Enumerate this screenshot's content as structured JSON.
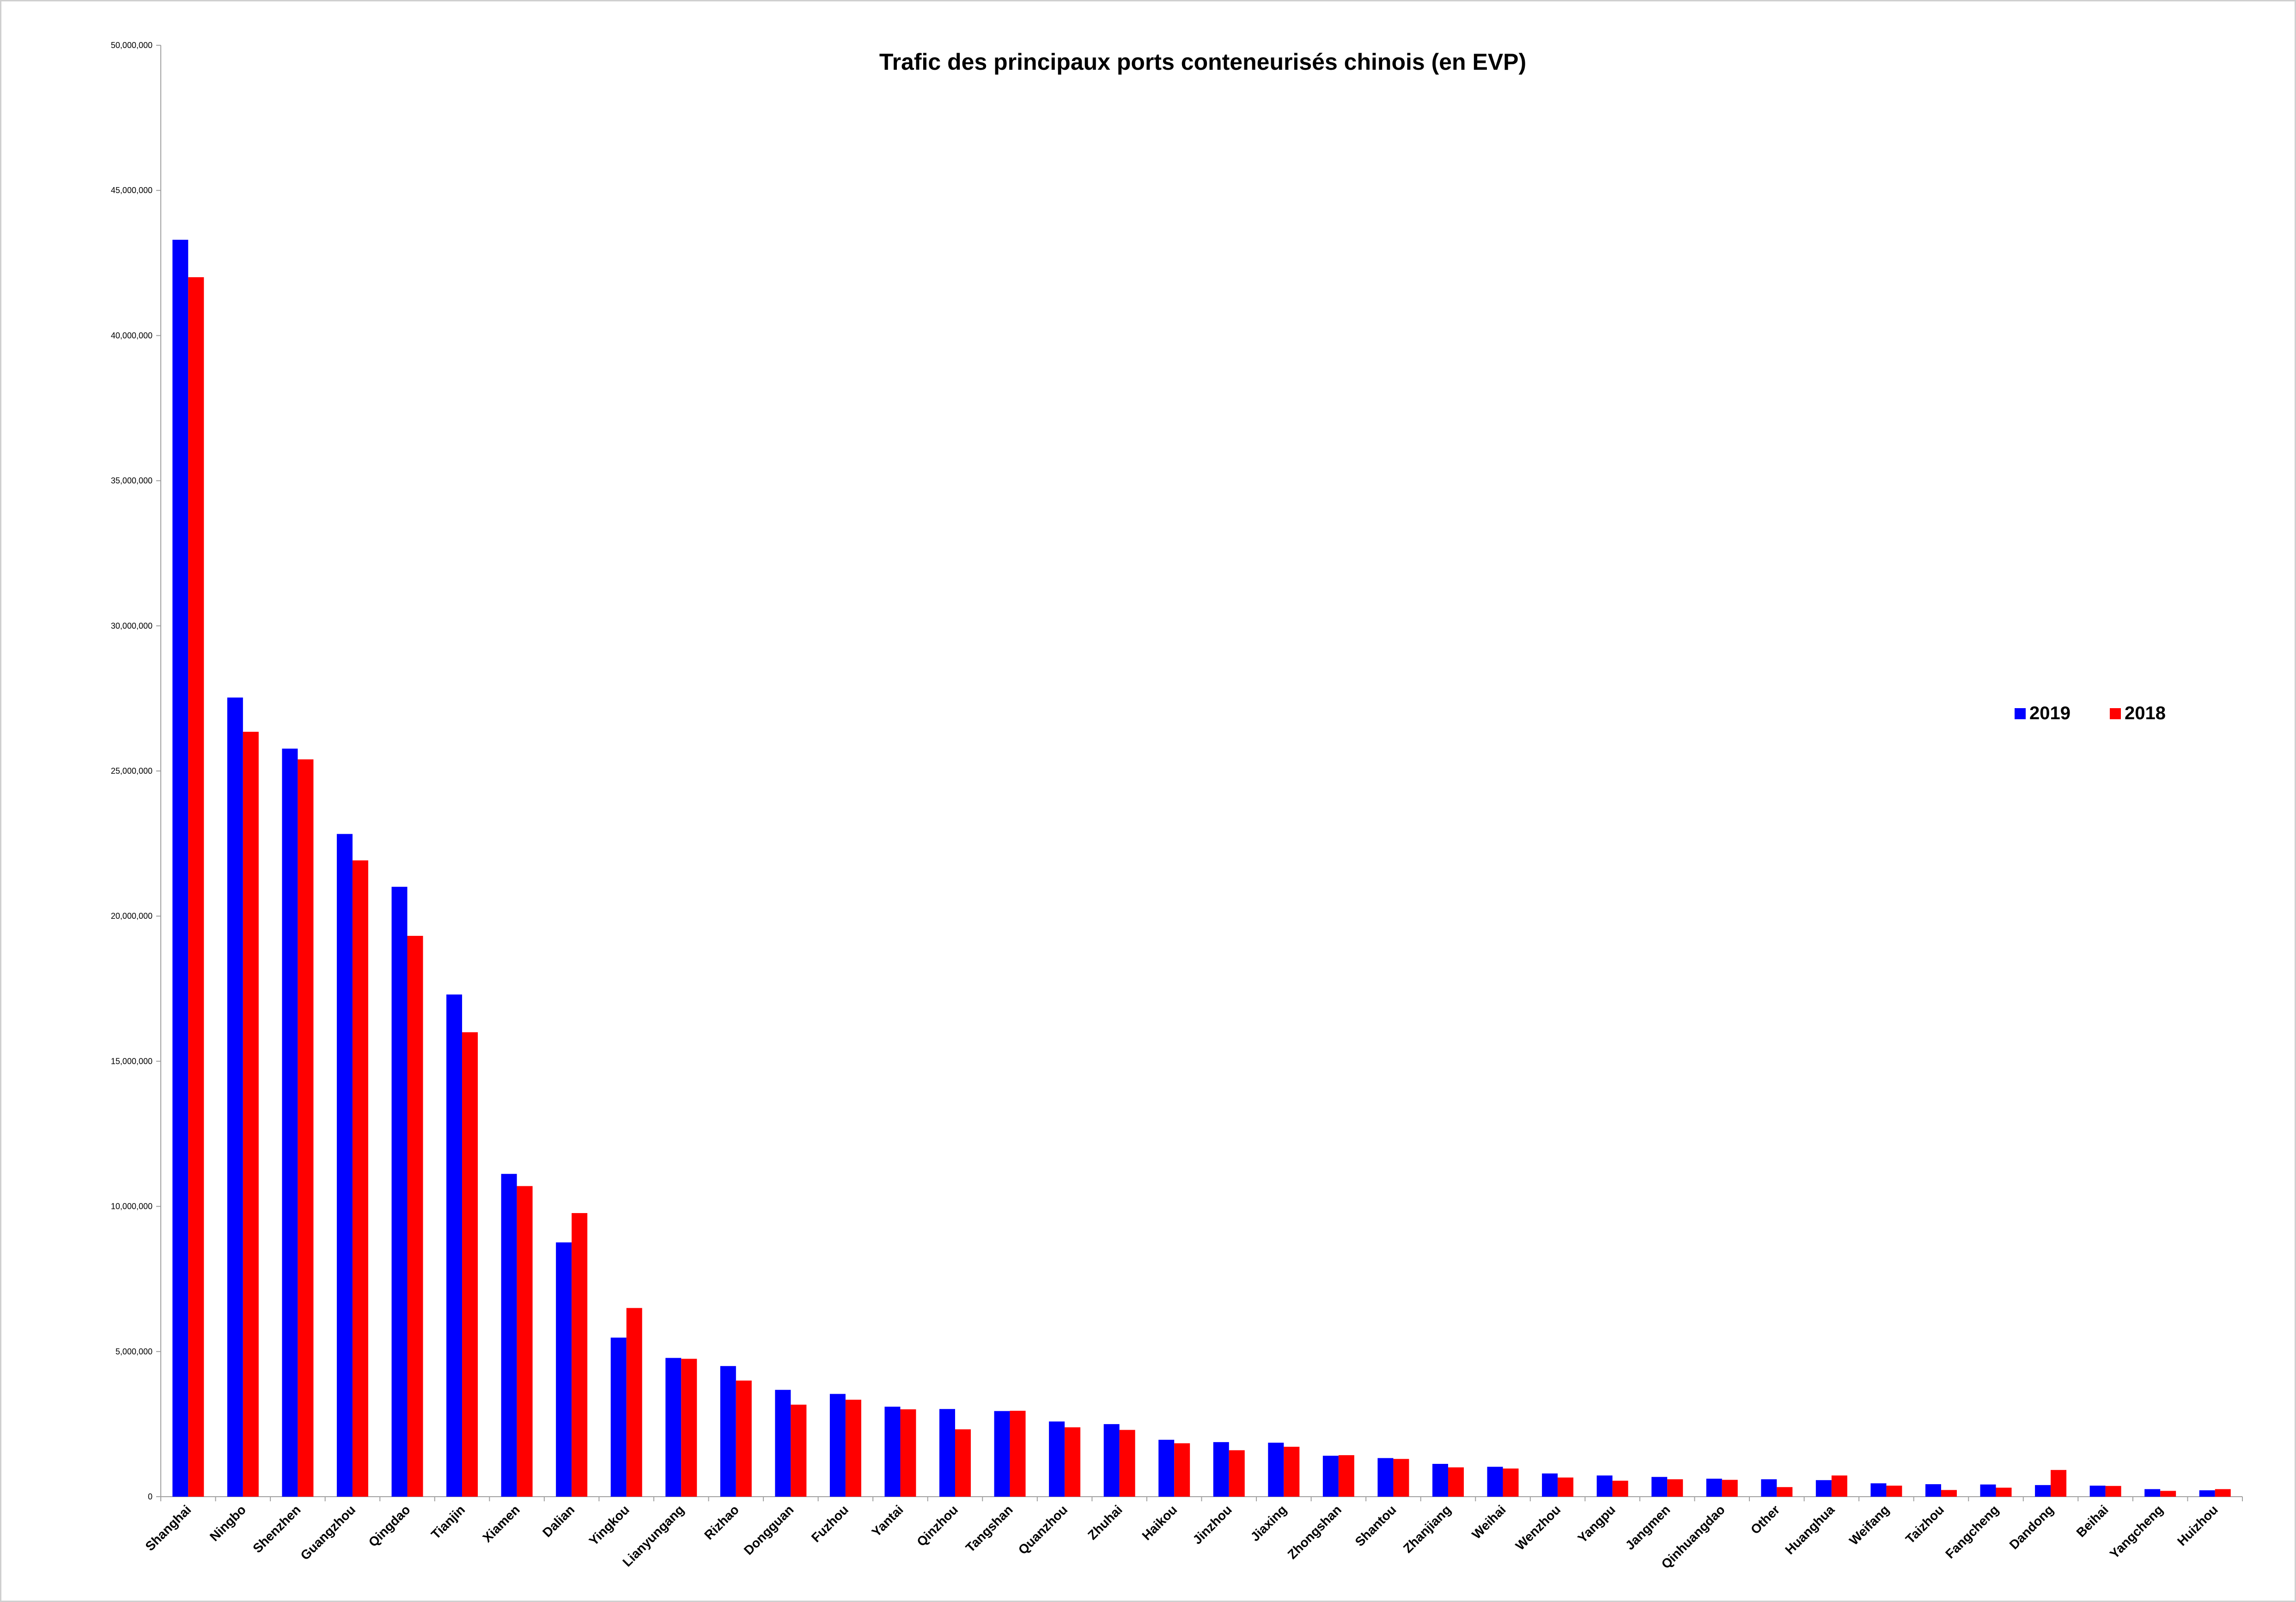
{
  "chart_data": {
    "type": "bar",
    "title": "Trafic des principaux ports conteneurisés chinois (en EVP)",
    "xlabel": "",
    "ylabel": "",
    "ylim": [
      0,
      50000000
    ],
    "yticks": [
      "0",
      "5,000,000",
      "10,000,000",
      "15,000,000",
      "20,000,000",
      "25,000,000",
      "30,000,000",
      "35,000,000",
      "40,000,000",
      "45,000,000",
      "50,000,000"
    ],
    "grid": false,
    "legend_position": "right",
    "categories": [
      "Shanghai",
      "Ningbo",
      "Shenzhen",
      "Guangzhou",
      "Qingdao",
      "Tianjin",
      "Xiamen",
      "Dalian",
      "Yingkou",
      "Lianyungang",
      "Rizhao",
      "Dongguan",
      "Fuzhou",
      "Yantai",
      "Qinzhou",
      "Tangshan",
      "Quanzhou",
      "Zhuhai",
      "Haikou",
      "Jinzhou",
      "Jiaxing",
      "Zhongshan",
      "Shantou",
      "Zhanjiang",
      "Weihai",
      "Wenzhou",
      "Yangpu",
      "Jangmen",
      "Qinhuangdao",
      "Other",
      "Huanghua",
      "Weifang",
      "Taizhou",
      "Fangcheng",
      "Dandong",
      "Beihai",
      "Yangcheng",
      "Huizhou"
    ],
    "series": [
      {
        "name": "2019",
        "color": "#0000ff",
        "values": [
          43300000,
          27530000,
          25770000,
          22830000,
          21010000,
          17300000,
          11120000,
          8760000,
          5480000,
          4780000,
          4500000,
          3680000,
          3540000,
          3100000,
          3020000,
          2950000,
          2590000,
          2500000,
          1960000,
          1880000,
          1860000,
          1410000,
          1330000,
          1130000,
          1030000,
          800000,
          730000,
          680000,
          620000,
          600000,
          570000,
          460000,
          430000,
          420000,
          400000,
          380000,
          260000,
          220000
        ]
      },
      {
        "name": "2018",
        "color": "#ff0000",
        "values": [
          42010000,
          26350000,
          25400000,
          21920000,
          19320000,
          16000000,
          10700000,
          9770000,
          6500000,
          4750000,
          4000000,
          3170000,
          3340000,
          3010000,
          2320000,
          2960000,
          2390000,
          2300000,
          1840000,
          1600000,
          1720000,
          1430000,
          1300000,
          1010000,
          970000,
          660000,
          550000,
          600000,
          580000,
          330000,
          730000,
          380000,
          230000,
          310000,
          920000,
          370000,
          200000,
          260000
        ]
      }
    ]
  }
}
